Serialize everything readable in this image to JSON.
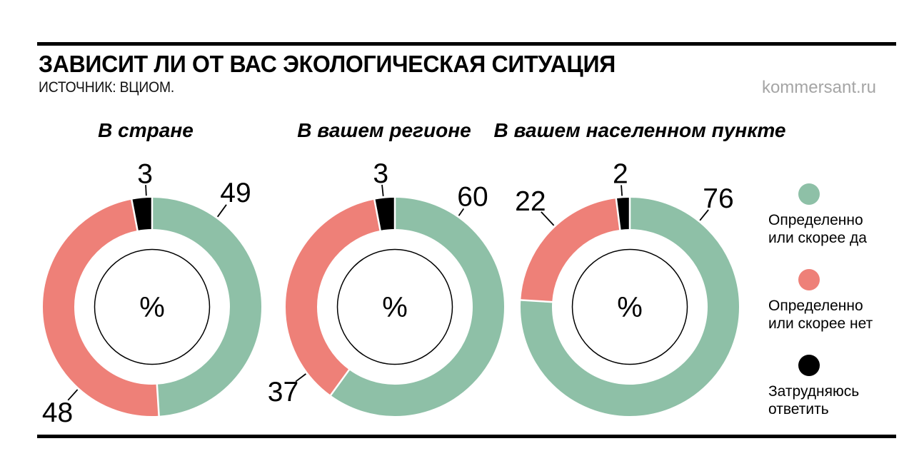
{
  "header": {
    "title": "ЗАВИСИТ ЛИ ОТ ВАС ЭКОЛОГИЧЕСКАЯ СИТУАЦИЯ",
    "source": "ИСТОЧНИК: ВЦИОМ.",
    "watermark": "kommersant.ru"
  },
  "donut_center_symbol": "%",
  "legend": {
    "items": [
      {
        "key": "yes",
        "line1": "Определенно",
        "line2": "или скорее да",
        "color": "#8ec0a7"
      },
      {
        "key": "no",
        "line1": "Определенно",
        "line2": "или скорее нет",
        "color": "#ee8078"
      },
      {
        "key": "undecided",
        "line1": "Затрудняюсь",
        "line2": "ответить",
        "color": "#000000"
      }
    ]
  },
  "chart_data": {
    "type": "pie",
    "subtype": "donut-small-multiples",
    "unit": "%",
    "title": "ЗАВИСИТ ЛИ ОТ ВАС ЭКОЛОГИЧЕСКАЯ СИТУАЦИЯ",
    "source": "ВЦИОМ",
    "legend_labels": [
      "Определенно или скорее да",
      "Определенно или скорее нет",
      "Затрудняюсь ответить"
    ],
    "colors": {
      "yes": "#8ec0a7",
      "no": "#ee8078",
      "undecided": "#000000"
    },
    "segment_order_clockwise_from_top": [
      "yes",
      "no",
      "undecided"
    ],
    "charts": [
      {
        "title": "В стране",
        "values": [
          {
            "key": "yes",
            "label": "Определенно или скорее да",
            "value": 49
          },
          {
            "key": "no",
            "label": "Определенно или скорее нет",
            "value": 48
          },
          {
            "key": "undecided",
            "label": "Затрудняюсь ответить",
            "value": 3
          }
        ]
      },
      {
        "title": "В вашем регионе",
        "values": [
          {
            "key": "yes",
            "label": "Определенно или скорее да",
            "value": 60
          },
          {
            "key": "no",
            "label": "Определенно или скорее нет",
            "value": 37
          },
          {
            "key": "undecided",
            "label": "Затрудняюсь ответить",
            "value": 3
          }
        ]
      },
      {
        "title": "В вашем населенном пункте",
        "values": [
          {
            "key": "yes",
            "label": "Определенно или скорее да",
            "value": 76
          },
          {
            "key": "no",
            "label": "Определенно или скорее нет",
            "value": 22
          },
          {
            "key": "undecided",
            "label": "Затрудняюсь ответить",
            "value": 2
          }
        ]
      }
    ]
  }
}
